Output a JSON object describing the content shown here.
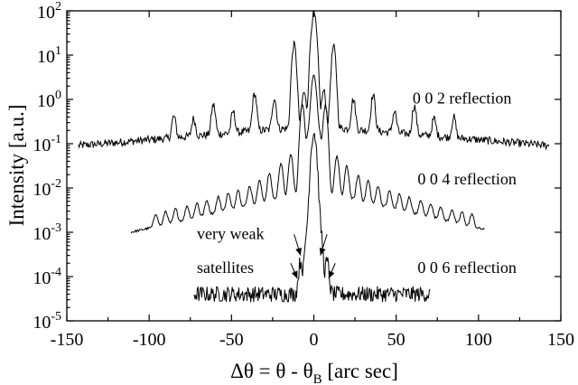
{
  "chart_data": {
    "type": "line",
    "title": "",
    "xlabel": "Δθ = θ - θ",
    "xlabel_sub": "B",
    "xlabel_unit": " [arc sec]",
    "ylabel": "Intensity [a.u.]",
    "xlim": [
      -150,
      150
    ],
    "ylim": [
      1e-05,
      100
    ],
    "yscale": "log",
    "grid": false,
    "x_ticks": [
      -150,
      -100,
      -50,
      0,
      50,
      100,
      150
    ],
    "x_tick_labels": [
      "-150",
      "-100",
      "-50",
      "0",
      "50",
      "100",
      "150"
    ],
    "y_ticks": [
      {
        "value": 1e-05,
        "mantissa": "10",
        "exp": "-5"
      },
      {
        "value": 0.0001,
        "mantissa": "10",
        "exp": "-4"
      },
      {
        "value": 0.001,
        "mantissa": "10",
        "exp": "-3"
      },
      {
        "value": 0.01,
        "mantissa": "10",
        "exp": "-2"
      },
      {
        "value": 0.1,
        "mantissa": "10",
        "exp": "-1"
      },
      {
        "value": 1,
        "mantissa": "10",
        "exp": "0"
      },
      {
        "value": 10,
        "mantissa": "10",
        "exp": "1"
      },
      {
        "value": 100,
        "mantissa": "10",
        "exp": "2"
      }
    ],
    "series": [
      {
        "name": "0 0 2 reflection",
        "x_range": [
          -143,
          143
        ],
        "baseline_center": 0.25,
        "baseline_edge": 0.09,
        "noise_dex": 0.09,
        "peaks": [
          {
            "x": 0,
            "y": 85
          },
          {
            "x": -12,
            "y": 17
          },
          {
            "x": 12,
            "y": 15
          },
          {
            "x": -6,
            "y": 1.2
          },
          {
            "x": 6,
            "y": 1.3
          },
          {
            "x": -24,
            "y": 0.85
          },
          {
            "x": 24,
            "y": 0.8
          },
          {
            "x": -36,
            "y": 1.15
          },
          {
            "x": 36,
            "y": 1.05
          },
          {
            "x": -49,
            "y": 0.35
          },
          {
            "x": 49,
            "y": 0.36
          },
          {
            "x": -61,
            "y": 0.6
          },
          {
            "x": 61,
            "y": 0.55
          },
          {
            "x": -73,
            "y": 0.22
          },
          {
            "x": 73,
            "y": 0.22
          },
          {
            "x": -85,
            "y": 0.28
          },
          {
            "x": 85,
            "y": 0.26
          }
        ]
      },
      {
        "name": "0 0 4 reflection",
        "x_range": [
          -111,
          104
        ],
        "baseline_center": 0.009,
        "baseline_edge": 0.001,
        "noise_dex": 0.025,
        "peaks": [
          {
            "x": 0,
            "y": 3.5
          },
          {
            "x": -7,
            "y": 0.75
          },
          {
            "x": 7,
            "y": 0.7
          },
          {
            "x": -3.5,
            "y": 0.15
          },
          {
            "x": 3.5,
            "y": 0.15
          },
          {
            "x": -14,
            "y": 0.05
          },
          {
            "x": 14,
            "y": 0.045
          },
          {
            "x": -20,
            "y": 0.03
          },
          {
            "x": 20,
            "y": 0.025
          },
          {
            "x": -27,
            "y": 0.016
          },
          {
            "x": 27,
            "y": 0.014
          },
          {
            "x": -33,
            "y": 0.01
          },
          {
            "x": 33,
            "y": 0.01
          },
          {
            "x": -39,
            "y": 0.007
          },
          {
            "x": 39,
            "y": 0.007
          },
          {
            "x": -46,
            "y": 0.0055
          },
          {
            "x": 46,
            "y": 0.005
          },
          {
            "x": -52,
            "y": 0.0045
          },
          {
            "x": 52,
            "y": 0.0042
          },
          {
            "x": -58,
            "y": 0.0035
          },
          {
            "x": 58,
            "y": 0.0034
          },
          {
            "x": -65,
            "y": 0.0028
          },
          {
            "x": 65,
            "y": 0.0027
          },
          {
            "x": -71,
            "y": 0.0024
          },
          {
            "x": 71,
            "y": 0.0023
          },
          {
            "x": -77,
            "y": 0.002
          },
          {
            "x": 77,
            "y": 0.0019
          },
          {
            "x": -84,
            "y": 0.0017
          },
          {
            "x": 84,
            "y": 0.0016
          },
          {
            "x": -90,
            "y": 0.0015
          },
          {
            "x": 90,
            "y": 0.0014
          },
          {
            "x": -96,
            "y": 0.0013
          },
          {
            "x": 96,
            "y": 0.00125
          }
        ]
      },
      {
        "name": "0 0 6 reflection",
        "x_range": [
          -73,
          71
        ],
        "baseline_center": 4e-05,
        "baseline_edge": 4e-05,
        "noise_dex": 0.18,
        "peaks": [
          {
            "x": 0,
            "y": 0.18
          },
          {
            "x": -4,
            "y": 0.001
          },
          {
            "x": 4,
            "y": 0.001
          },
          {
            "x": -8,
            "y": 0.00018
          },
          {
            "x": 8,
            "y": 0.00017
          }
        ]
      }
    ],
    "annotations": [
      {
        "text": "very weak",
        "x": -71,
        "y": 0.0007
      },
      {
        "text": "satellites",
        "x": -71,
        "y": 0.00012
      },
      {
        "text": "0 0 2 reflection",
        "x": 60,
        "y": 0.8
      },
      {
        "text": "0 0 4 reflection",
        "x": 63,
        "y": 0.012
      },
      {
        "text": "0 0 6 reflection",
        "x": 63,
        "y": 0.00012
      }
    ],
    "arrows": [
      {
        "from": [
          -12,
          0.0009
        ],
        "to": [
          -8,
          0.0003
        ]
      },
      {
        "from": [
          8,
          0.0009
        ],
        "to": [
          4,
          0.0003
        ]
      },
      {
        "from": [
          -14,
          0.0002
        ],
        "to": [
          -10,
          9e-05
        ]
      },
      {
        "from": [
          13,
          0.0002
        ],
        "to": [
          9,
          9e-05
        ]
      }
    ]
  }
}
